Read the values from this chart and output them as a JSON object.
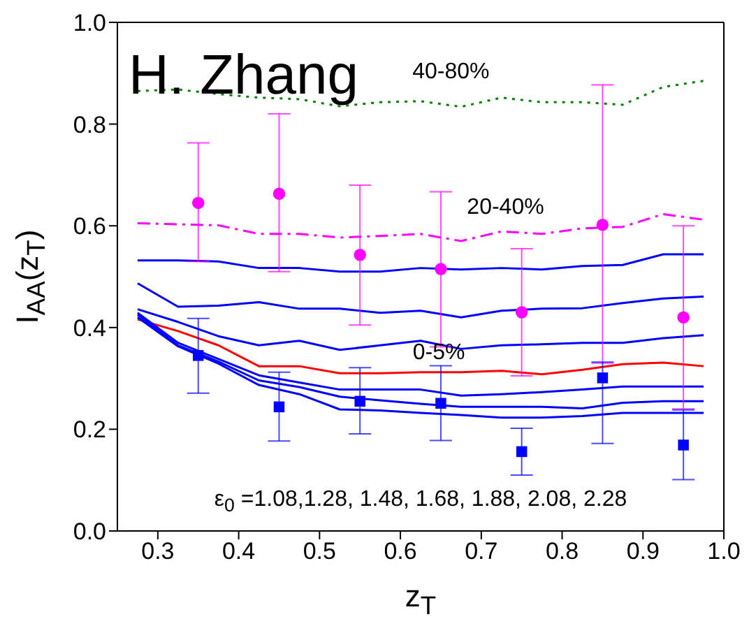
{
  "chart_data": {
    "type": "line",
    "xlabel": "z$_{T}$",
    "ylabel": "I$_{AA}$(z$_{T}$)",
    "xlim": [
      0.25,
      1.0
    ],
    "ylim": [
      0,
      1.0
    ],
    "xticks": [
      0.3,
      0.4,
      0.5,
      0.6,
      0.7,
      0.8,
      0.9,
      {
        "value": 1,
        "label": "1.0"
      }
    ],
    "yticks": [
      {
        "value": 0,
        "label": "0.0"
      },
      0.2,
      0.4,
      0.6,
      0.8,
      {
        "value": 1,
        "label": "1.0"
      }
    ],
    "annotations": [
      "H. Zhang",
      "ε$_{0}$ =1.08,1.28, 1.48, 1.68, 1.88, 2.08, 2.28",
      "40-80%",
      "20-40%",
      "0-5%"
    ],
    "series": [
      {
        "color": "#0000ff",
        "line_style": "solid",
        "x": [
          0.275,
          0.325,
          0.375,
          0.425,
          0.475,
          0.525,
          0.575,
          0.625,
          0.675,
          0.725,
          0.775,
          0.825,
          0.875,
          0.925,
          0.975
        ],
        "values": [
          0.532,
          0.532,
          0.53,
          0.517,
          0.517,
          0.51,
          0.51,
          0.517,
          0.514,
          0.517,
          0.514,
          0.521,
          0.523,
          0.544,
          0.544
        ]
      },
      {
        "color": "#0000ff",
        "line_style": "solid",
        "x": [
          0.275,
          0.325,
          0.375,
          0.425,
          0.475,
          0.525,
          0.575,
          0.625,
          0.675,
          0.725,
          0.775,
          0.825,
          0.875,
          0.925,
          0.975
        ],
        "values": [
          0.487,
          0.441,
          0.443,
          0.45,
          0.437,
          0.437,
          0.429,
          0.433,
          0.42,
          0.433,
          0.437,
          0.438,
          0.448,
          0.457,
          0.461
        ]
      },
      {
        "color": "#0000ff",
        "line_style": "solid",
        "x": [
          0.275,
          0.325,
          0.375,
          0.425,
          0.475,
          0.525,
          0.575,
          0.625,
          0.675,
          0.725,
          0.775,
          0.825,
          0.875,
          0.925,
          0.975
        ],
        "values": [
          0.436,
          0.411,
          0.383,
          0.365,
          0.374,
          0.356,
          0.365,
          0.374,
          0.358,
          0.365,
          0.367,
          0.37,
          0.37,
          0.379,
          0.385
        ]
      },
      {
        "color": "#ff0000",
        "line_style": "solid",
        "x": [
          0.275,
          0.325,
          0.375,
          0.425,
          0.475,
          0.525,
          0.575,
          0.625,
          0.675,
          0.725,
          0.775,
          0.825,
          0.875,
          0.925,
          0.975
        ],
        "values": [
          0.416,
          0.393,
          0.365,
          0.324,
          0.324,
          0.31,
          0.31,
          0.312,
          0.312,
          0.315,
          0.308,
          0.317,
          0.328,
          0.331,
          0.324
        ]
      },
      {
        "color": "#0000ff",
        "line_style": "solid",
        "x": [
          0.275,
          0.325,
          0.375,
          0.425,
          0.475,
          0.525,
          0.575,
          0.625,
          0.675,
          0.725,
          0.775,
          0.825,
          0.875,
          0.925,
          0.975
        ],
        "values": [
          0.429,
          0.37,
          0.338,
          0.306,
          0.292,
          0.278,
          0.278,
          0.278,
          0.266,
          0.269,
          0.273,
          0.278,
          0.284,
          0.284,
          0.284
        ]
      },
      {
        "color": "#0000ff",
        "line_style": "solid",
        "x": [
          0.275,
          0.325,
          0.375,
          0.425,
          0.475,
          0.525,
          0.575,
          0.625,
          0.675,
          0.725,
          0.775,
          0.825,
          0.875,
          0.925,
          0.975
        ],
        "values": [
          0.425,
          0.365,
          0.333,
          0.296,
          0.283,
          0.264,
          0.257,
          0.25,
          0.244,
          0.244,
          0.244,
          0.241,
          0.252,
          0.255,
          0.255
        ]
      },
      {
        "color": "#0000ff",
        "line_style": "solid",
        "x": [
          0.275,
          0.325,
          0.375,
          0.425,
          0.475,
          0.525,
          0.575,
          0.625,
          0.675,
          0.725,
          0.775,
          0.825,
          0.875,
          0.925,
          0.975
        ],
        "values": [
          0.42,
          0.363,
          0.329,
          0.287,
          0.269,
          0.239,
          0.237,
          0.232,
          0.228,
          0.223,
          0.223,
          0.226,
          0.232,
          0.232,
          0.232
        ]
      },
      {
        "color": "#ff00ff",
        "line_style": "dashed",
        "x": [
          0.275,
          0.325,
          0.375,
          0.425,
          0.475,
          0.525,
          0.575,
          0.625,
          0.675,
          0.725,
          0.775,
          0.825,
          0.875,
          0.925,
          0.975
        ],
        "values": [
          0.605,
          0.603,
          0.601,
          0.584,
          0.584,
          0.577,
          0.58,
          0.584,
          0.57,
          0.589,
          0.584,
          0.595,
          0.598,
          0.623,
          0.612
        ]
      },
      {
        "color": "#008000",
        "line_style": "dotted",
        "x": [
          0.275,
          0.325,
          0.375,
          0.425,
          0.475,
          0.525,
          0.575,
          0.625,
          0.675,
          0.725,
          0.775,
          0.825,
          0.875,
          0.925,
          0.975
        ],
        "values": [
          0.865,
          0.868,
          0.859,
          0.852,
          0.849,
          0.835,
          0.843,
          0.845,
          0.834,
          0.852,
          0.843,
          0.843,
          0.838,
          0.873,
          0.885
        ]
      },
      {
        "type": "scatter",
        "marker": "circle",
        "color": "#ff00ff",
        "x": [
          0.35,
          0.45,
          0.55,
          0.65,
          0.75,
          0.85,
          0.95
        ],
        "values": [
          0.645,
          0.663,
          0.543,
          0.515,
          0.43,
          0.602,
          0.42
        ],
        "errors": [
          [
            0.53,
            0.763
          ],
          [
            0.51,
            0.82
          ],
          [
            0.405,
            0.68
          ],
          [
            0.362,
            0.667
          ],
          [
            0.305,
            0.555
          ],
          [
            0.33,
            0.877
          ],
          [
            0.24,
            0.6
          ]
        ]
      },
      {
        "type": "scatter",
        "marker": "square",
        "color": "#0000ff",
        "x": [
          0.35,
          0.45,
          0.55,
          0.65,
          0.75,
          0.85,
          0.95
        ],
        "values": [
          0.345,
          0.244,
          0.255,
          0.251,
          0.156,
          0.301,
          0.169
        ],
        "errors": [
          [
            0.271,
            0.418
          ],
          [
            0.177,
            0.312
          ],
          [
            0.191,
            0.321
          ],
          [
            0.178,
            0.325
          ],
          [
            0.11,
            0.202
          ],
          [
            0.172,
            0.332
          ],
          [
            0.101,
            0.238
          ]
        ]
      }
    ]
  }
}
